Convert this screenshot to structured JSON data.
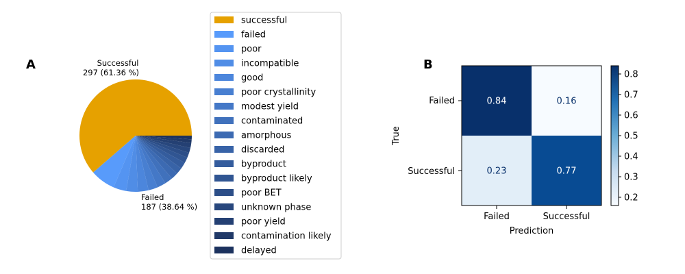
{
  "panels": {
    "a": "A",
    "b": "B"
  },
  "chart_data": [
    {
      "type": "pie",
      "slice_labels": [
        {
          "name": "Successful",
          "value_text": "297 (61.36 %)"
        },
        {
          "name": "Failed",
          "value_text": "187 (38.64 %)"
        }
      ],
      "groups": {
        "Successful": 297,
        "Failed": 187
      },
      "legend": {
        "location": "right",
        "entries": [
          "successful",
          "failed",
          "poor",
          "incompatible",
          "good",
          "poor crystallinity",
          "modest yield",
          "contaminated",
          "amorphous",
          "discarded",
          "byproduct",
          "byproduct likely",
          "poor BET",
          "unknown phase",
          "poor yield",
          "contamination likely",
          "delayed"
        ]
      },
      "slices": [
        {
          "label": "successful",
          "value": 297,
          "color": "#e6a100"
        },
        {
          "label": "failed",
          "value": 35,
          "color": "#589bfb"
        },
        {
          "label": "poor",
          "value": 18,
          "color": "#5494f1"
        },
        {
          "label": "incompatible",
          "value": 16,
          "color": "#508de6"
        },
        {
          "label": "good",
          "value": 15,
          "color": "#4c86dc"
        },
        {
          "label": "poor crystallinity",
          "value": 13,
          "color": "#487fd1"
        },
        {
          "label": "modest yield",
          "value": 12,
          "color": "#4478c7"
        },
        {
          "label": "contaminated",
          "value": 11,
          "color": "#4071bc"
        },
        {
          "label": "amorphous",
          "value": 10,
          "color": "#3c6ab2"
        },
        {
          "label": "discarded",
          "value": 9,
          "color": "#3863a7"
        },
        {
          "label": "byproduct",
          "value": 9,
          "color": "#345c9d"
        },
        {
          "label": "byproduct likely",
          "value": 8,
          "color": "#305592"
        },
        {
          "label": "poor BET",
          "value": 7,
          "color": "#2c4e88"
        },
        {
          "label": "unknown phase",
          "value": 7,
          "color": "#28477d"
        },
        {
          "label": "poor yield",
          "value": 7,
          "color": "#244073"
        },
        {
          "label": "contamination likely",
          "value": 5,
          "color": "#203968"
        },
        {
          "label": "delayed",
          "value": 5,
          "color": "#1c325e"
        }
      ]
    },
    {
      "type": "heatmap",
      "xlabel": "Prediction",
      "ylabel": "True",
      "x_categories": [
        "Failed",
        "Successful"
      ],
      "y_categories": [
        "Failed",
        "Successful"
      ],
      "values": [
        [
          0.84,
          0.16
        ],
        [
          0.23,
          0.77
        ]
      ],
      "value_labels": [
        [
          "0.84",
          "0.16"
        ],
        [
          "0.23",
          "0.77"
        ]
      ],
      "colormap": "Blues",
      "colorbar": {
        "min": 0.16,
        "max": 0.84,
        "ticks": [
          "0.8",
          "0.7",
          "0.6",
          "0.5",
          "0.4",
          "0.3",
          "0.2"
        ]
      }
    }
  ]
}
